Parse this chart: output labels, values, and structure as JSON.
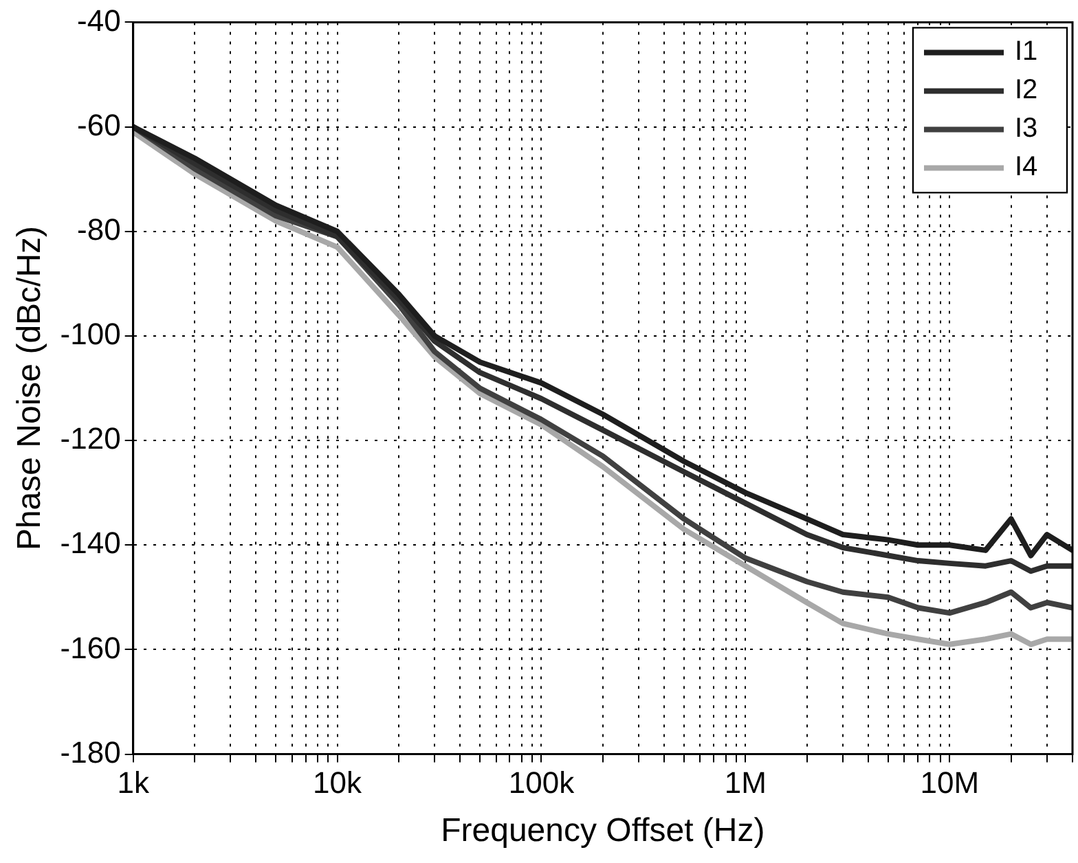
{
  "chart_data": {
    "type": "line",
    "xlabel": "Frequency Offset (Hz)",
    "ylabel": "Phase Noise (dBc/Hz)",
    "log": "x",
    "grid": true,
    "legend": "top right",
    "marker": "none",
    "line_style": "solid",
    "x": [
      1000,
      2000,
      5000,
      10000,
      20000,
      30000,
      50000,
      100000,
      200000,
      500000,
      1000000,
      2000000,
      3000000,
      5000000,
      7000000,
      10000000,
      15000000,
      20000000,
      25000000,
      30000000,
      40000000
    ],
    "xlim": [
      1000,
      40000000
    ],
    "xticks": [
      {
        "value": 1000,
        "label": "1k"
      },
      {
        "value": 2000,
        "label": null
      },
      {
        "value": 3000,
        "label": null
      },
      {
        "value": 4000,
        "label": null
      },
      {
        "value": 5000,
        "label": null
      },
      {
        "value": 6000,
        "label": null
      },
      {
        "value": 7000,
        "label": null
      },
      {
        "value": 8000,
        "label": null
      },
      {
        "value": 9000,
        "label": null
      },
      {
        "value": 10000,
        "label": "10k"
      },
      {
        "value": 20000,
        "label": null
      },
      {
        "value": 30000,
        "label": null
      },
      {
        "value": 40000,
        "label": null
      },
      {
        "value": 50000,
        "label": null
      },
      {
        "value": 60000,
        "label": null
      },
      {
        "value": 70000,
        "label": null
      },
      {
        "value": 80000,
        "label": null
      },
      {
        "value": 90000,
        "label": null
      },
      {
        "value": 100000,
        "label": "100k"
      },
      {
        "value": 200000,
        "label": null
      },
      {
        "value": 300000,
        "label": null
      },
      {
        "value": 400000,
        "label": null
      },
      {
        "value": 500000,
        "label": null
      },
      {
        "value": 600000,
        "label": null
      },
      {
        "value": 700000,
        "label": null
      },
      {
        "value": 800000,
        "label": null
      },
      {
        "value": 900000,
        "label": null
      },
      {
        "value": 1000000,
        "label": "1M"
      },
      {
        "value": 2000000,
        "label": null
      },
      {
        "value": 3000000,
        "label": null
      },
      {
        "value": 4000000,
        "label": null
      },
      {
        "value": 5000000,
        "label": null
      },
      {
        "value": 6000000,
        "label": null
      },
      {
        "value": 7000000,
        "label": null
      },
      {
        "value": 8000000,
        "label": null
      },
      {
        "value": 9000000,
        "label": null
      },
      {
        "value": 10000000,
        "label": "10M"
      },
      {
        "value": 20000000,
        "label": null
      },
      {
        "value": 30000000,
        "label": null
      },
      {
        "value": 40000000,
        "label": null
      }
    ],
    "ylim": [
      -180,
      -40
    ],
    "yticks": [
      -180,
      -160,
      -140,
      -120,
      -100,
      -80,
      -60,
      -40
    ],
    "series": [
      {
        "name": "I1",
        "color": "#1e1e1e",
        "values": [
          -60,
          -66,
          -75,
          -80,
          -92,
          -100,
          -105,
          -109,
          -115,
          -124,
          -130,
          -135,
          -138,
          -139,
          -140,
          -140,
          -141,
          -135,
          -142,
          -138,
          -141
        ]
      },
      {
        "name": "I2",
        "color": "#2e2e2e",
        "values": [
          -60,
          -67,
          -76,
          -81,
          -93,
          -101,
          -107,
          -112,
          -118,
          -126,
          -132,
          -138,
          -140.5,
          -142,
          -143,
          -143.5,
          -144,
          -143,
          -145,
          -144,
          -144
        ]
      },
      {
        "name": "I3",
        "color": "#404040",
        "values": [
          -60,
          -68,
          -77,
          -81,
          -94,
          -103,
          -110,
          -116,
          -123,
          -135,
          -142.5,
          -147,
          -149,
          -150,
          -152,
          -153,
          -151,
          -149,
          -152,
          -151,
          -152
        ]
      },
      {
        "name": "I4",
        "color": "#a8a8a8",
        "values": [
          -61,
          -69,
          -78,
          -83,
          -96,
          -104,
          -111,
          -117,
          -125,
          -137,
          -144,
          -151,
          -155,
          -157,
          -158,
          -159,
          -158,
          -157,
          -159,
          -158,
          -158
        ]
      }
    ]
  }
}
